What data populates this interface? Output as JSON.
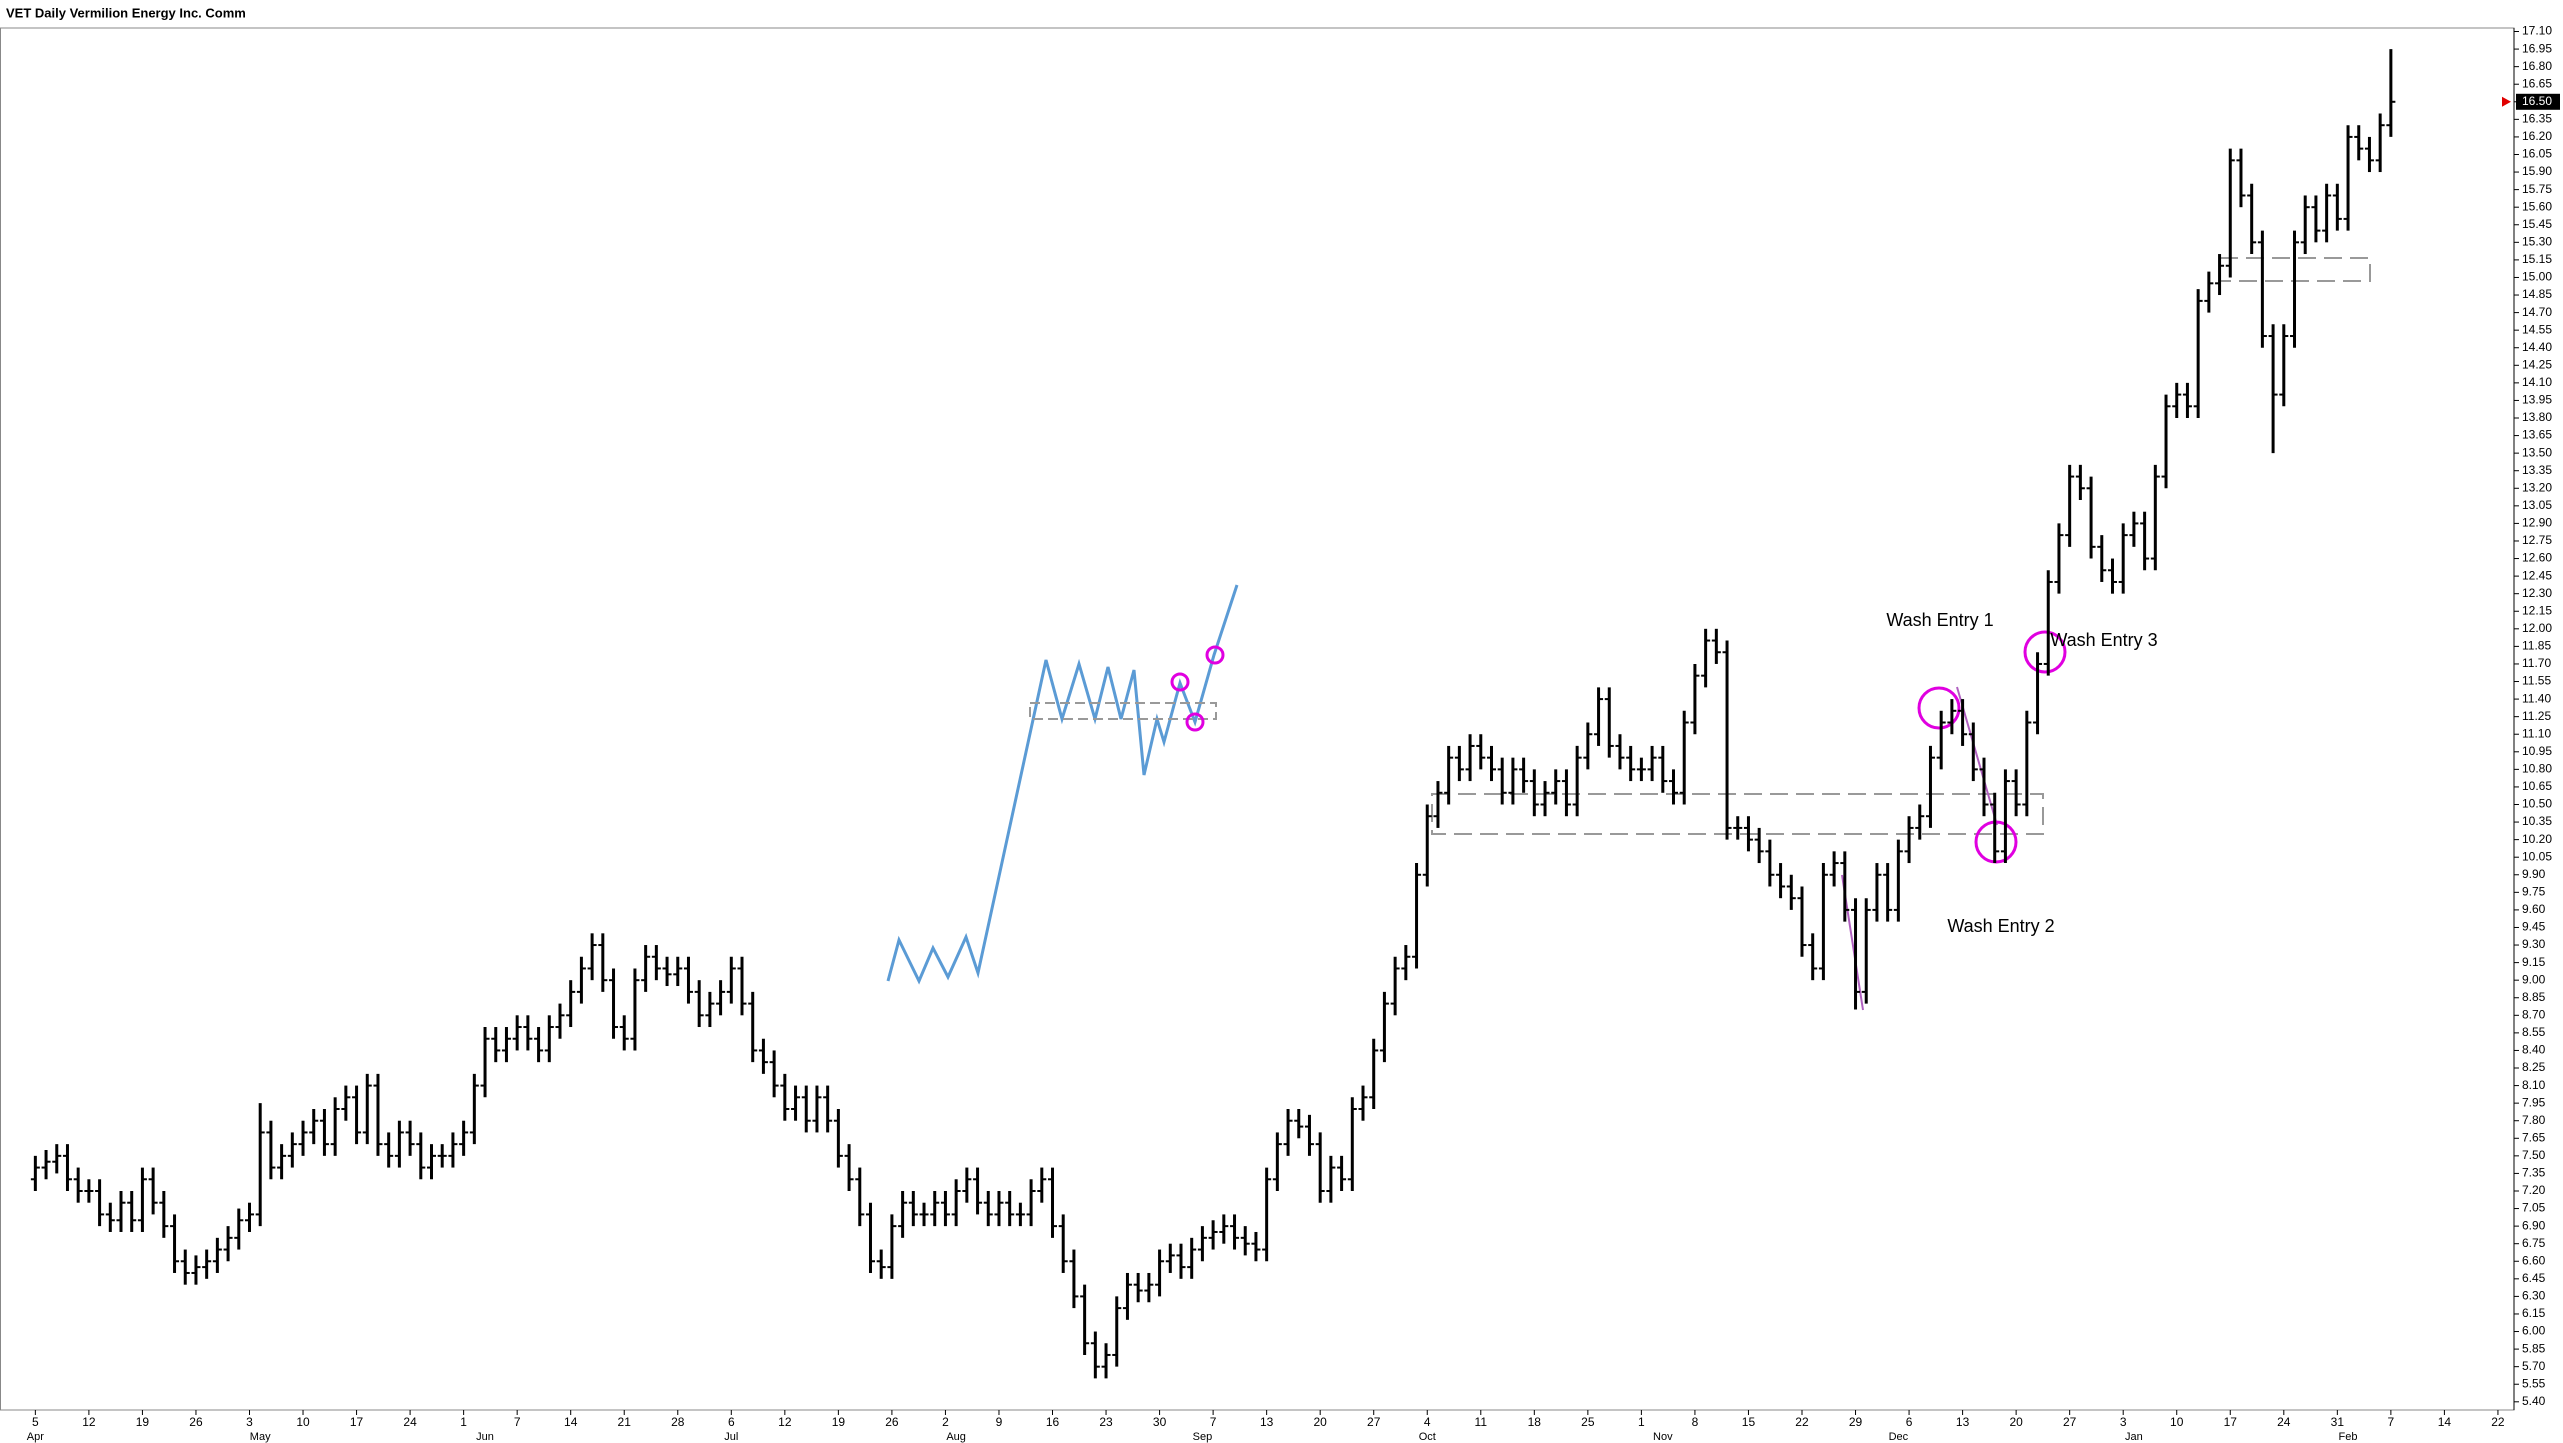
{
  "chart_data": {
    "type": "ohlc",
    "title": "VET Daily Vermilion Energy Inc. Comm",
    "color": "#000000",
    "categories": [
      "5",
      null,
      null,
      null,
      null,
      "12",
      null,
      null,
      null,
      null,
      "19",
      null,
      null,
      null,
      null,
      "26",
      null,
      null,
      null,
      null,
      "3",
      null,
      null,
      null,
      null,
      "10",
      null,
      null,
      null,
      null,
      "17",
      null,
      null,
      null,
      null,
      "24",
      null,
      null,
      null,
      null,
      "1",
      null,
      null,
      null,
      null,
      "7",
      null,
      null,
      null,
      null,
      "14",
      null,
      null,
      null,
      null,
      "21",
      null,
      null,
      null,
      null,
      "28",
      null,
      null,
      null,
      null,
      "6",
      null,
      null,
      null,
      null,
      "12",
      null,
      null,
      null,
      null,
      "19",
      null,
      null,
      null,
      null,
      "26",
      null,
      null,
      null,
      null,
      "2",
      null,
      null,
      null,
      null,
      "9",
      null,
      null,
      null,
      null,
      "16",
      null,
      null,
      null,
      null,
      "23",
      null,
      null,
      null,
      null,
      "30",
      null,
      null,
      null,
      null,
      "7",
      null,
      null,
      null,
      null,
      "13",
      null,
      null,
      null,
      null,
      "20",
      null,
      null,
      null,
      null,
      "27",
      null,
      null,
      null,
      null,
      "4",
      null,
      null,
      null,
      null,
      "11",
      null,
      null,
      null,
      null,
      "18",
      null,
      null,
      null,
      null,
      "25",
      null,
      null,
      null,
      null,
      "1",
      null,
      null,
      null,
      null,
      "8",
      null,
      null,
      null,
      null,
      "15",
      null,
      null,
      null,
      null,
      "22",
      null,
      null,
      null,
      null,
      "29",
      null,
      null,
      null,
      null,
      "6",
      null,
      null,
      null,
      null,
      "13",
      null,
      null,
      null,
      null,
      "20",
      null,
      null,
      null,
      null,
      "27",
      null,
      null,
      null,
      null,
      "3",
      null,
      null,
      null,
      null,
      "10",
      null,
      null,
      null,
      null,
      "17",
      null,
      null,
      null,
      null,
      "24",
      null,
      null,
      null,
      null,
      "31",
      null,
      null,
      null,
      null,
      "7",
      null,
      null,
      null,
      null,
      "14",
      null,
      null,
      null,
      null,
      "22",
      null
    ],
    "months": [
      "Apr",
      null,
      null,
      null,
      null,
      null,
      null,
      null,
      null,
      null,
      null,
      null,
      null,
      null,
      null,
      null,
      null,
      null,
      null,
      null,
      null,
      "May",
      null,
      null,
      null,
      null,
      null,
      null,
      null,
      null,
      null,
      null,
      null,
      null,
      null,
      null,
      null,
      null,
      null,
      null,
      null,
      null,
      "Jun",
      null,
      null,
      null,
      null,
      null,
      null,
      null,
      null,
      null,
      null,
      null,
      null,
      null,
      null,
      null,
      null,
      null,
      null,
      null,
      null,
      null,
      null,
      "Jul",
      null,
      null,
      null,
      null,
      null,
      null,
      null,
      null,
      null,
      null,
      null,
      null,
      null,
      null,
      null,
      null,
      null,
      null,
      null,
      null,
      "Aug",
      null,
      null,
      null,
      null,
      null,
      null,
      null,
      null,
      null,
      null,
      null,
      null,
      null,
      null,
      null,
      null,
      null,
      null,
      null,
      null,
      null,
      null,
      "Sep",
      null,
      null,
      null,
      null,
      null,
      null,
      null,
      null,
      null,
      null,
      null,
      null,
      null,
      null,
      null,
      null,
      null,
      null,
      null,
      null,
      "Oct",
      null,
      null,
      null,
      null,
      null,
      null,
      null,
      null,
      null,
      null,
      null,
      null,
      null,
      null,
      null,
      null,
      null,
      null,
      null,
      null,
      null,
      "Nov",
      null,
      null,
      null,
      null,
      null,
      null,
      null,
      null,
      null,
      null,
      null,
      null,
      null,
      null,
      null,
      null,
      null,
      null,
      null,
      null,
      null,
      "Dec",
      null,
      null,
      null,
      null,
      null,
      null,
      null,
      null,
      null,
      null,
      null,
      null,
      null,
      null,
      null,
      null,
      null,
      null,
      null,
      null,
      null,
      "Jan",
      null,
      null,
      null,
      null,
      null,
      null,
      null,
      null,
      null,
      null,
      null,
      null,
      null,
      null,
      null,
      null,
      null,
      null,
      null,
      "Feb",
      null,
      null,
      null,
      null,
      null,
      null,
      null,
      null,
      null,
      null,
      null,
      null,
      null,
      null,
      null
    ],
    "open": [
      7.3,
      7.4,
      7.45,
      7.5,
      7.3,
      7.2,
      7.2,
      7.0,
      6.95,
      7.1,
      6.95,
      7.3,
      7.1,
      6.9,
      6.6,
      6.5,
      6.55,
      6.6,
      6.7,
      6.8,
      6.95,
      7.0,
      7.7,
      7.4,
      7.5,
      7.6,
      7.7,
      7.8,
      7.6,
      7.9,
      8.0,
      7.7,
      8.1,
      7.6,
      7.5,
      7.7,
      7.6,
      7.4,
      7.5,
      7.5,
      7.6,
      7.7,
      8.1,
      8.5,
      8.4,
      8.5,
      8.6,
      8.5,
      8.4,
      8.6,
      8.7,
      8.9,
      9.1,
      9.3,
      9.0,
      8.6,
      8.5,
      9.0,
      9.2,
      9.1,
      9.05,
      9.1,
      8.9,
      8.7,
      8.8,
      8.9,
      9.1,
      8.8,
      8.4,
      8.3,
      8.1,
      7.9,
      8.0,
      7.8,
      8.0,
      7.8,
      7.5,
      7.3,
      7.0,
      6.6,
      6.55,
      6.9,
      7.1,
      7.0,
      7.0,
      7.1,
      7.0,
      7.2,
      7.3,
      7.1,
      7.0,
      7.1,
      7.0,
      7.0,
      7.2,
      7.3,
      6.9,
      6.6,
      6.3,
      5.9,
      5.7,
      5.8,
      6.2,
      6.4,
      6.35,
      6.4,
      6.6,
      6.65,
      6.55,
      6.7,
      6.8,
      6.85,
      6.9,
      6.8,
      6.75,
      6.7,
      7.3,
      7.6,
      7.8,
      7.75,
      7.6,
      7.2,
      7.4,
      7.3,
      7.9,
      8.0,
      8.4,
      8.8,
      9.1,
      9.2,
      9.9,
      10.4,
      10.6,
      10.9,
      10.8,
      11.0,
      10.9,
      10.8,
      10.6,
      10.8,
      10.7,
      10.5,
      10.6,
      10.7,
      10.5,
      10.9,
      11.1,
      11.4,
      11.0,
      10.9,
      10.8,
      10.8,
      10.9,
      10.7,
      10.6,
      11.2,
      11.6,
      11.9,
      11.8,
      10.3,
      10.3,
      10.2,
      10.1,
      9.9,
      9.8,
      9.7,
      9.3,
      9.1,
      9.9,
      10.0,
      9.6,
      8.9,
      9.6,
      9.9,
      9.6,
      10.1,
      10.3,
      10.4,
      10.9,
      11.2,
      11.3,
      11.1,
      10.8,
      10.5,
      10.1,
      10.7,
      10.5,
      11.2,
      11.7,
      12.4,
      12.8,
      13.3,
      13.2,
      12.7,
      12.5,
      12.4,
      12.8,
      12.9,
      12.6,
      13.3,
      13.9,
      14.0,
      13.9,
      14.8,
      14.95,
      15.1,
      16.0,
      15.7,
      15.3,
      14.5,
      14.0,
      14.5,
      15.3,
      15.6,
      15.4,
      15.7,
      15.5,
      16.2,
      16.1,
      16.0,
      16.3,
      null,
      null,
      null,
      null,
      null,
      null,
      null,
      null,
      null,
      null,
      null
    ],
    "high": [
      7.5,
      7.55,
      7.6,
      7.6,
      7.4,
      7.3,
      7.3,
      7.1,
      7.2,
      7.2,
      7.4,
      7.4,
      7.2,
      7.0,
      6.7,
      6.65,
      6.7,
      6.8,
      6.9,
      7.05,
      7.1,
      7.95,
      7.8,
      7.6,
      7.7,
      7.8,
      7.9,
      7.9,
      8.0,
      8.1,
      8.1,
      8.2,
      8.2,
      7.7,
      7.8,
      7.8,
      7.7,
      7.6,
      7.6,
      7.7,
      7.8,
      8.2,
      8.6,
      8.6,
      8.6,
      8.7,
      8.7,
      8.6,
      8.7,
      8.8,
      9.0,
      9.2,
      9.4,
      9.4,
      9.1,
      8.7,
      9.1,
      9.3,
      9.3,
      9.2,
      9.2,
      9.2,
      9.0,
      8.9,
      9.0,
      9.2,
      9.2,
      8.9,
      8.5,
      8.4,
      8.2,
      8.1,
      8.1,
      8.1,
      8.1,
      7.9,
      7.6,
      7.4,
      7.1,
      6.7,
      7.0,
      7.2,
      7.2,
      7.1,
      7.2,
      7.2,
      7.3,
      7.4,
      7.4,
      7.2,
      7.2,
      7.2,
      7.1,
      7.3,
      7.4,
      7.4,
      7.0,
      6.7,
      6.4,
      6.0,
      5.9,
      6.3,
      6.5,
      6.5,
      6.5,
      6.7,
      6.75,
      6.75,
      6.8,
      6.9,
      6.95,
      7.0,
      7.0,
      6.9,
      6.85,
      7.4,
      7.7,
      7.9,
      7.9,
      7.85,
      7.7,
      7.5,
      7.5,
      8.0,
      8.1,
      8.5,
      8.9,
      9.2,
      9.3,
      10.0,
      10.5,
      10.7,
      11.0,
      11.0,
      11.1,
      11.1,
      11.0,
      10.9,
      10.9,
      10.9,
      10.8,
      10.7,
      10.8,
      10.8,
      11.0,
      11.2,
      11.5,
      11.5,
      11.1,
      11.0,
      10.9,
      11.0,
      11.0,
      10.8,
      11.3,
      11.7,
      12.0,
      12.0,
      11.9,
      10.4,
      10.4,
      10.3,
      10.2,
      10.0,
      9.9,
      9.8,
      9.4,
      10.0,
      10.1,
      10.1,
      9.7,
      9.7,
      10.0,
      10.0,
      10.2,
      10.4,
      10.5,
      11.0,
      11.3,
      11.4,
      11.4,
      11.2,
      10.9,
      10.6,
      10.8,
      10.8,
      11.3,
      11.8,
      12.5,
      12.9,
      13.4,
      13.4,
      13.3,
      12.8,
      12.6,
      12.9,
      13.0,
      13.0,
      13.4,
      14.0,
      14.1,
      14.1,
      14.9,
      15.05,
      15.2,
      16.1,
      16.1,
      15.8,
      15.4,
      14.6,
      14.6,
      15.4,
      15.7,
      15.7,
      15.8,
      15.8,
      16.3,
      16.3,
      16.2,
      16.4,
      16.95,
      null,
      null,
      null,
      null,
      null,
      null,
      null,
      null,
      null,
      null,
      null
    ],
    "low": [
      7.2,
      7.3,
      7.35,
      7.2,
      7.1,
      7.1,
      6.9,
      6.85,
      6.85,
      6.85,
      6.85,
      7.0,
      6.8,
      6.5,
      6.4,
      6.4,
      6.45,
      6.5,
      6.6,
      6.7,
      6.85,
      6.9,
      7.3,
      7.3,
      7.4,
      7.5,
      7.6,
      7.5,
      7.5,
      7.8,
      7.6,
      7.6,
      7.5,
      7.4,
      7.4,
      7.5,
      7.3,
      7.3,
      7.4,
      7.4,
      7.5,
      7.6,
      8.0,
      8.3,
      8.3,
      8.4,
      8.4,
      8.3,
      8.3,
      8.5,
      8.6,
      8.8,
      9.0,
      8.9,
      8.5,
      8.4,
      8.4,
      8.9,
      9.0,
      8.95,
      8.95,
      8.8,
      8.6,
      8.6,
      8.7,
      8.8,
      8.7,
      8.3,
      8.2,
      8.0,
      7.8,
      7.8,
      7.7,
      7.7,
      7.7,
      7.4,
      7.2,
      6.9,
      6.5,
      6.45,
      6.45,
      6.8,
      6.9,
      6.9,
      6.9,
      6.9,
      6.9,
      7.1,
      7.0,
      6.9,
      6.9,
      6.9,
      6.9,
      6.9,
      7.1,
      6.8,
      6.5,
      6.2,
      5.8,
      5.6,
      5.6,
      5.7,
      6.1,
      6.25,
      6.25,
      6.3,
      6.5,
      6.45,
      6.45,
      6.6,
      6.7,
      6.75,
      6.7,
      6.65,
      6.6,
      6.6,
      7.2,
      7.5,
      7.65,
      7.5,
      7.1,
      7.1,
      7.2,
      7.2,
      7.8,
      7.9,
      8.3,
      8.7,
      9.0,
      9.1,
      9.8,
      10.3,
      10.5,
      10.7,
      10.7,
      10.8,
      10.7,
      10.5,
      10.5,
      10.6,
      10.4,
      10.4,
      10.5,
      10.4,
      10.4,
      10.8,
      11.0,
      10.9,
      10.8,
      10.7,
      10.7,
      10.7,
      10.6,
      10.5,
      10.5,
      11.1,
      11.5,
      11.7,
      10.2,
      10.2,
      10.1,
      10.0,
      9.8,
      9.7,
      9.6,
      9.2,
      9.0,
      9.0,
      9.8,
      9.5,
      8.75,
      8.8,
      9.5,
      9.5,
      9.5,
      10.0,
      10.2,
      10.3,
      10.8,
      11.1,
      11.0,
      10.7,
      10.4,
      10.0,
      10.0,
      10.4,
      10.4,
      11.1,
      11.6,
      12.3,
      12.7,
      13.1,
      12.6,
      12.4,
      12.3,
      12.3,
      12.7,
      12.5,
      12.5,
      13.2,
      13.8,
      13.8,
      13.8,
      14.7,
      14.85,
      15.0,
      15.6,
      15.2,
      14.4,
      13.5,
      13.9,
      14.4,
      15.2,
      15.3,
      15.3,
      15.4,
      15.4,
      16.0,
      15.9,
      15.9,
      16.2,
      null,
      null,
      null,
      null,
      null,
      null,
      null,
      null,
      null,
      null,
      null
    ],
    "close": [
      7.4,
      7.45,
      7.5,
      7.3,
      7.2,
      7.2,
      7.0,
      6.95,
      7.1,
      6.95,
      7.3,
      7.1,
      6.9,
      6.6,
      6.5,
      6.55,
      6.6,
      6.7,
      6.8,
      6.95,
      7.0,
      7.7,
      7.4,
      7.5,
      7.6,
      7.7,
      7.8,
      7.6,
      7.9,
      8.0,
      7.7,
      8.1,
      7.6,
      7.5,
      7.7,
      7.6,
      7.4,
      7.5,
      7.5,
      7.6,
      7.7,
      8.1,
      8.5,
      8.4,
      8.5,
      8.6,
      8.5,
      8.4,
      8.6,
      8.7,
      8.9,
      9.1,
      9.3,
      9.0,
      8.6,
      8.5,
      9.0,
      9.2,
      9.1,
      9.05,
      9.1,
      8.9,
      8.7,
      8.8,
      8.9,
      9.1,
      8.8,
      8.4,
      8.3,
      8.1,
      7.9,
      8.0,
      7.8,
      8.0,
      7.8,
      7.5,
      7.3,
      7.0,
      6.6,
      6.55,
      6.9,
      7.1,
      7.0,
      7.0,
      7.1,
      7.0,
      7.2,
      7.3,
      7.1,
      7.0,
      7.1,
      7.0,
      7.0,
      7.2,
      7.3,
      6.9,
      6.6,
      6.3,
      5.9,
      5.7,
      5.8,
      6.2,
      6.4,
      6.35,
      6.4,
      6.6,
      6.65,
      6.55,
      6.7,
      6.8,
      6.85,
      6.9,
      6.8,
      6.75,
      6.7,
      7.3,
      7.6,
      7.8,
      7.75,
      7.6,
      7.2,
      7.4,
      7.3,
      7.9,
      8.0,
      8.4,
      8.8,
      9.1,
      9.2,
      9.9,
      10.4,
      10.6,
      10.9,
      10.8,
      11.0,
      10.9,
      10.8,
      10.6,
      10.8,
      10.7,
      10.5,
      10.6,
      10.7,
      10.5,
      10.9,
      11.1,
      11.4,
      11.0,
      10.9,
      10.8,
      10.8,
      10.9,
      10.7,
      10.6,
      11.2,
      11.6,
      11.9,
      11.8,
      10.3,
      10.3,
      10.2,
      10.1,
      9.9,
      9.8,
      9.7,
      9.3,
      9.1,
      9.9,
      10.0,
      9.6,
      8.9,
      9.6,
      9.9,
      9.6,
      10.1,
      10.3,
      10.4,
      10.9,
      11.2,
      11.3,
      11.1,
      10.8,
      10.5,
      10.1,
      10.7,
      10.5,
      11.2,
      11.7,
      12.4,
      12.8,
      13.3,
      13.2,
      12.7,
      12.5,
      12.4,
      12.8,
      12.9,
      12.6,
      13.3,
      13.9,
      14.0,
      13.9,
      14.8,
      14.95,
      15.1,
      16.0,
      15.7,
      15.3,
      14.5,
      14.0,
      14.5,
      15.3,
      15.6,
      15.4,
      15.7,
      15.5,
      16.2,
      16.1,
      16.0,
      16.3,
      16.5,
      null,
      null,
      null,
      null,
      null,
      null,
      null,
      null,
      null,
      null,
      null
    ],
    "ylim": [
      5.33,
      17.13
    ],
    "yticks": [
      {
        "value": 5.4,
        "label": "5.40"
      },
      5.55,
      {
        "value": 5.7,
        "label": "5.70"
      },
      5.85,
      {
        "value": 6,
        "label": "6.00"
      },
      6.15,
      {
        "value": 6.3,
        "label": "6.30"
      },
      6.45,
      {
        "value": 6.6,
        "label": "6.60"
      },
      6.75,
      {
        "value": 6.9,
        "label": "6.90"
      },
      7.05,
      {
        "value": 7.2,
        "label": "7.20"
      },
      7.35,
      {
        "value": 7.5,
        "label": "7.50"
      },
      7.65,
      {
        "value": 7.8,
        "label": "7.80"
      },
      7.95,
      {
        "value": 8.1,
        "label": "8.10"
      },
      8.25,
      {
        "value": 8.4,
        "label": "8.40"
      },
      8.55,
      {
        "value": 8.7,
        "label": "8.70"
      },
      8.85,
      {
        "value": 9,
        "label": "9.00"
      },
      9.15,
      {
        "value": 9.3,
        "label": "9.30"
      },
      9.45,
      {
        "value": 9.6,
        "label": "9.60"
      },
      9.75,
      {
        "value": 9.9,
        "label": "9.90"
      },
      10.05,
      {
        "value": 10.2,
        "label": "10.20"
      },
      10.35,
      {
        "value": 10.5,
        "label": "10.50"
      },
      10.65,
      {
        "value": 10.8,
        "label": "10.80"
      },
      10.95,
      {
        "value": 11.1,
        "label": "11.10"
      },
      11.25,
      {
        "value": 11.4,
        "label": "11.40"
      },
      11.55,
      {
        "value": 11.7,
        "label": "11.70"
      },
      11.85,
      {
        "value": 12,
        "label": "12.00"
      },
      12.15,
      {
        "value": 12.3,
        "label": "12.30"
      },
      12.45,
      {
        "value": 12.6,
        "label": "12.60"
      },
      12.75,
      {
        "value": 12.9,
        "label": "12.90"
      },
      13.05,
      {
        "value": 13.2,
        "label": "13.20"
      },
      13.35,
      {
        "value": 13.5,
        "label": "13.50"
      },
      13.65,
      {
        "value": 13.8,
        "label": "13.80"
      },
      13.95,
      {
        "value": 14.1,
        "label": "14.10"
      },
      14.25,
      {
        "value": 14.4,
        "label": "14.40"
      },
      14.55,
      {
        "value": 14.7,
        "label": "14.70"
      },
      14.85,
      {
        "value": 15,
        "label": "15.00"
      },
      15.15,
      {
        "value": 15.3,
        "label": "15.30"
      },
      15.45,
      {
        "value": 15.6,
        "label": "15.60"
      },
      15.75,
      {
        "value": 15.9,
        "label": "15.90"
      },
      16.05,
      {
        "value": 16.2,
        "label": "16.20"
      },
      16.35,
      {
        "value": 16.5,
        "label": "16.50"
      },
      16.65,
      {
        "value": 16.8,
        "label": "16.80"
      },
      16.95,
      {
        "value": 17.1,
        "label": "17.10"
      }
    ],
    "last_price": {
      "value": 16.5,
      "label": "16.50"
    },
    "annotations": [
      "Wash Entry 1",
      "Wash Entry 2",
      "Wash Entry 3"
    ]
  }
}
